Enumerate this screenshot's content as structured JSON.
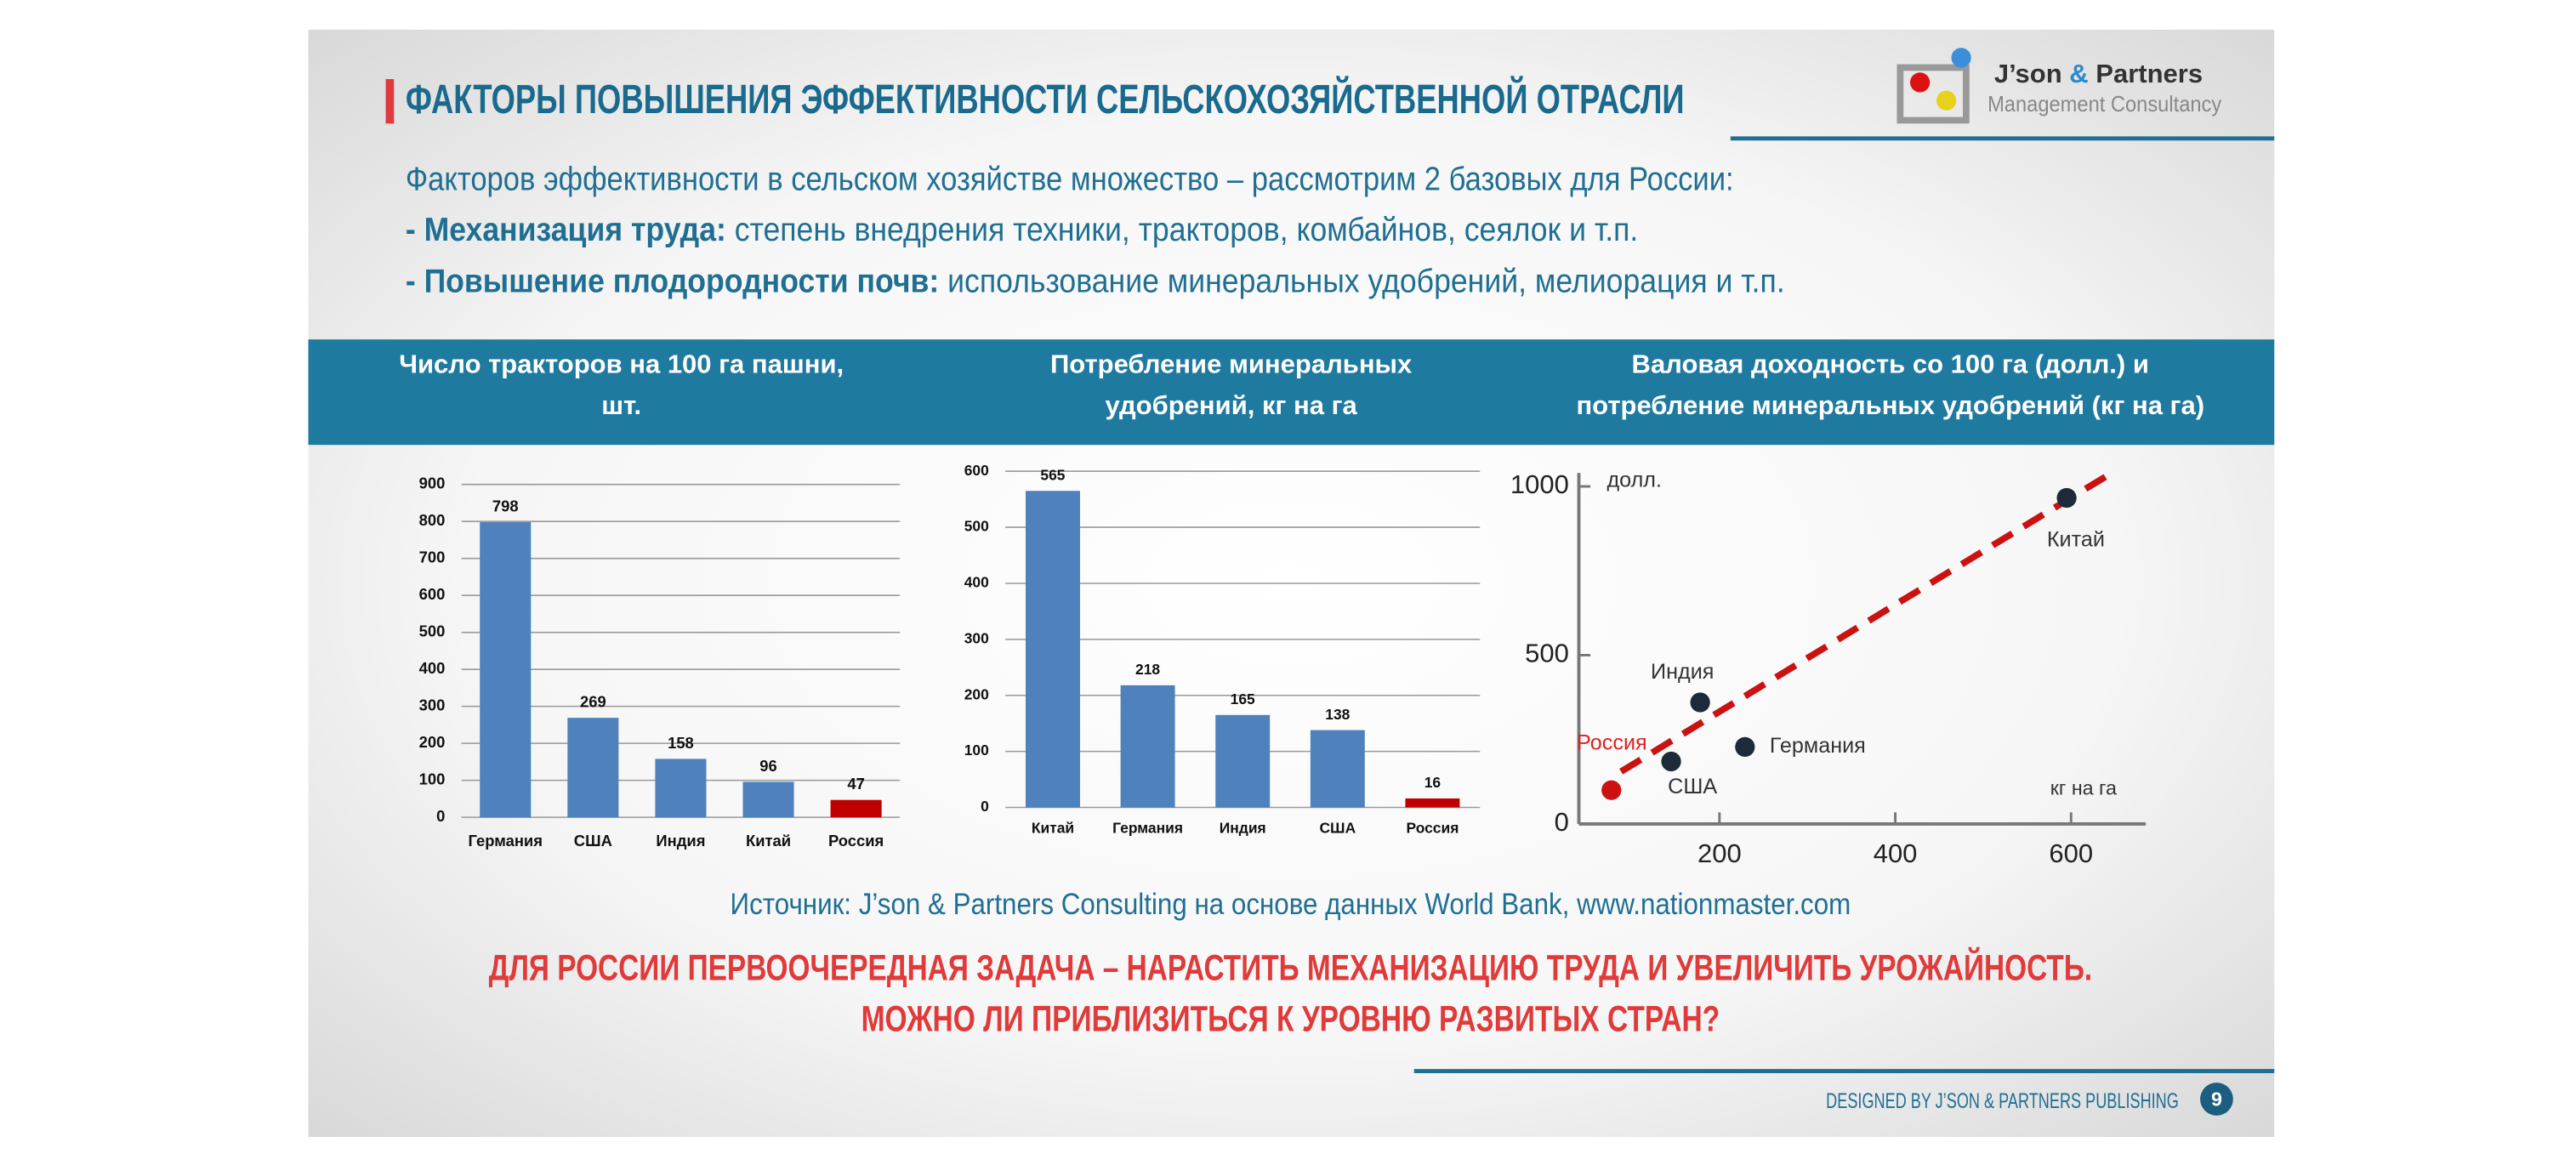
{
  "header": {
    "title": "ФАКТОРЫ ПОВЫШЕНИЯ ЭФФЕКТИВНОСТИ СЕЛЬСКОХОЗЯЙСТВЕННОЙ ОТРАСЛИ",
    "intro": "Факторов эффективности в сельском хозяйстве множество – рассмотрим 2 базовых для России:",
    "points": [
      {
        "bold": "- Механизация труда:",
        "text": "степень внедрения техники, тракторов, комбайнов, сеялок и т.п."
      },
      {
        "bold": "- Повышение плодородности почв:",
        "text": "использование минеральных удобрений, мелиорация и т.п."
      }
    ]
  },
  "logo": {
    "name_1": "J’son",
    "name_amp": "&",
    "name_2": "Partners",
    "subtitle": "Management Consultancy"
  },
  "chart_data": [
    {
      "type": "bar",
      "title": [
        "Число тракторов на 100 га пашни,",
        "шт."
      ],
      "categories": [
        "Германия",
        "США",
        "Индия",
        "Китай",
        "Россия"
      ],
      "values": [
        798,
        269,
        158,
        96,
        47
      ],
      "colors": [
        "#4f81bd",
        "#4f81bd",
        "#4f81bd",
        "#4f81bd",
        "#c00000"
      ],
      "ylim": [
        0,
        900
      ],
      "yticks": [
        0,
        100,
        200,
        300,
        400,
        500,
        600,
        700,
        800,
        900
      ],
      "grid": true
    },
    {
      "type": "bar",
      "title": [
        "Потребление минеральных",
        "удобрений, кг на га"
      ],
      "categories": [
        "Китай",
        "Германия",
        "Индия",
        "США",
        "Россия"
      ],
      "values": [
        565,
        218,
        165,
        138,
        16
      ],
      "colors": [
        "#4f81bd",
        "#4f81bd",
        "#4f81bd",
        "#4f81bd",
        "#c00000"
      ],
      "ylim": [
        0,
        600
      ],
      "yticks": [
        0,
        100,
        200,
        300,
        400,
        500,
        600
      ],
      "grid": true
    },
    {
      "type": "scatter",
      "title": [
        "Валовая доходность со 100 га (долл.)  и",
        "потребление минеральных удобрений (кг на га)"
      ],
      "y_label": "долл.",
      "x_label": "кг на га",
      "labels": [
        "Россия",
        "США",
        "Индия",
        "Германия",
        "Китай"
      ],
      "x": [
        77,
        145,
        178,
        229,
        595
      ],
      "values": [
        100,
        185,
        360,
        228,
        966
      ],
      "colors": [
        "#cc1111",
        "#1c2a3a",
        "#1c2a3a",
        "#1c2a3a",
        "#1c2a3a"
      ],
      "label_colors": [
        "#dd2222",
        "#333333",
        "#333333",
        "#333333",
        "#333333"
      ],
      "trend": {
        "color": "#cc1111",
        "x": [
          88,
          640
        ],
        "values": [
          155,
          1030
        ]
      },
      "xlim": [
        40,
        685
      ],
      "xticks": [
        200,
        400,
        600
      ],
      "ylim": [
        0,
        1040
      ],
      "yticks": [
        0,
        500,
        1000
      ]
    }
  ],
  "source": "Источник: J’son & Partners Consulting на основе данных World Bank,  www.nationmaster.com",
  "conclusion": [
    "ДЛЯ РОССИИ ПЕРВООЧЕРЕДНАЯ ЗАДАЧА – НАРАСТИТЬ МЕХАНИЗАЦИЮ ТРУДА И УВЕЛИЧИТЬ УРОЖАЙНОСТЬ.",
    "МОЖНО ЛИ ПРИБЛИЗИТЬСЯ К УРОВНЮ РАЗВИТЫХ СТРАН?"
  ],
  "footer": {
    "text": "DESIGNED BY J’SON & PARTNERS PUBLISHING",
    "page": "9"
  }
}
